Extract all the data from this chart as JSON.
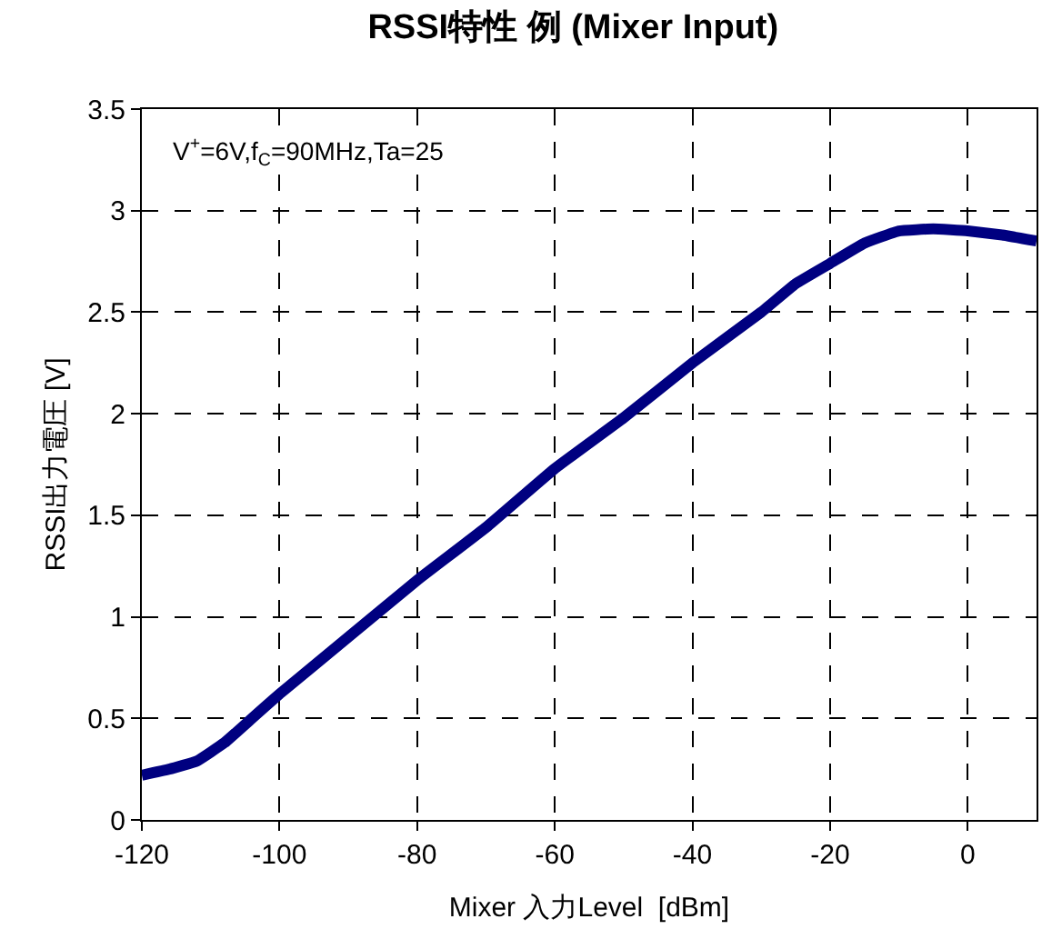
{
  "chart_data": {
    "type": "line",
    "title": "RSSI特性 例 (Mixer Input)",
    "xlabel": "Mixer 入力Level  [dBm]",
    "ylabel": "RSSI出力電圧 [V]",
    "annotations": [
      "V$^{+}$=6V,f$_{C}$=90MHz,Ta=25"
    ],
    "x": [
      -120,
      -116,
      -112,
      -108,
      -104,
      -100,
      -90,
      -80,
      -70,
      -60,
      -50,
      -40,
      -30,
      -25,
      -20,
      -15,
      -10,
      -5,
      0,
      5,
      10
    ],
    "series": [
      {
        "color": "#000080",
        "values": [
          0.22,
          0.25,
          0.29,
          0.38,
          0.5,
          0.62,
          0.9,
          1.18,
          1.44,
          1.73,
          1.98,
          2.25,
          2.5,
          2.64,
          2.74,
          2.84,
          2.9,
          2.91,
          2.9,
          2.88,
          2.85
        ]
      }
    ],
    "xlim": [
      -120,
      10
    ],
    "xticks": [
      -120,
      -100,
      -80,
      -60,
      -40,
      -20,
      0
    ],
    "ylim": [
      0,
      3.5
    ],
    "yticks": [
      0,
      0.5,
      1,
      1.5,
      2,
      2.5,
      3,
      3.5
    ],
    "grid": true,
    "marker": "none",
    "line_style": "solid"
  }
}
